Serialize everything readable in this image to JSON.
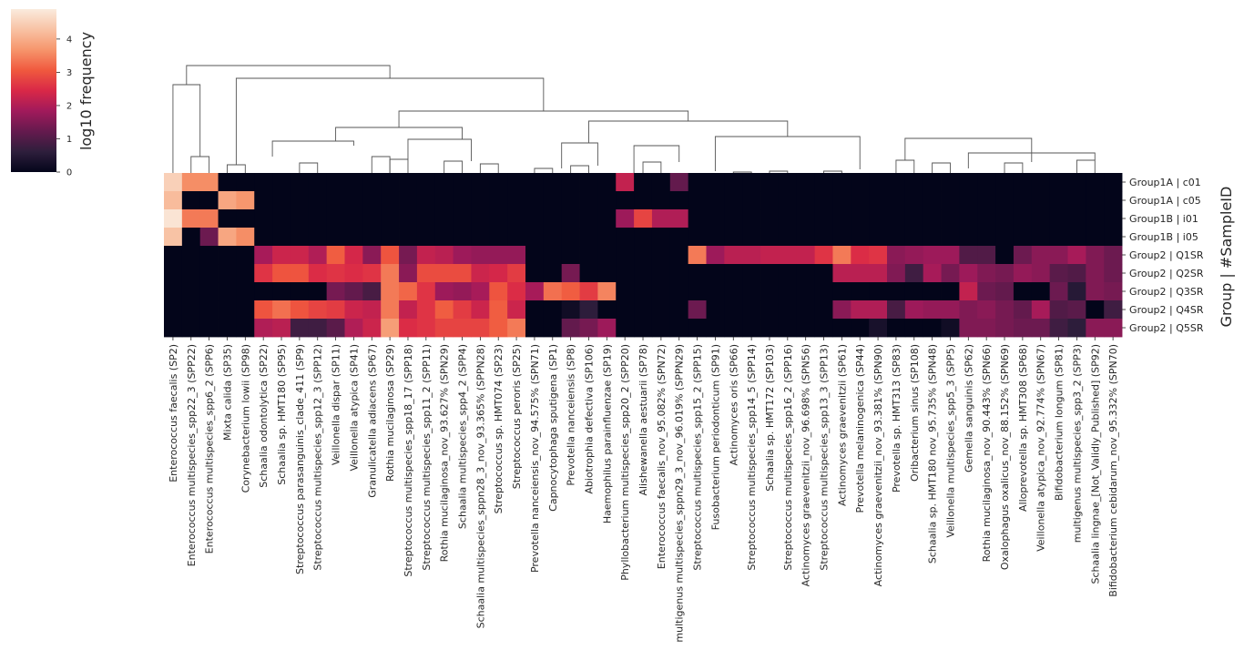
{
  "chart_data": {
    "type": "heatmap",
    "colorbar": {
      "label": "log10 frequency",
      "ticks": [
        0,
        1,
        2,
        3,
        4
      ],
      "range": [
        0,
        4.9
      ],
      "colormap": "rocket",
      "stops": [
        "#03051a",
        "#2e1e3c",
        "#651a4e",
        "#a11a5b",
        "#d92847",
        "#f0593e",
        "#f6956c",
        "#f8c2a4",
        "#faebdd"
      ]
    },
    "ylabel": "Group | #SampleID",
    "rows": [
      "Group1A | c01",
      "Group1A | c05",
      "Group1B | i01",
      "Group1B | i05",
      "Group2 | Q1SR",
      "Group2 | Q2SR",
      "Group2 | Q3SR",
      "Group2 | Q4SR",
      "Group2 | Q5SR"
    ],
    "columns": [
      "Enterococcus faecalis (SP2)",
      "Enterococcus multispecies_spp22_3 (SPP22)",
      "Enterococcus multispecies_spp6_2 (SPP6)",
      "Mixta calida (SP35)",
      "Corynebacterium lowii (SP98)",
      "Schaalia odontolytica (SP22)",
      "Schaalia sp. HMT180 (SP95)",
      "Streptococcus parasanguinis_clade_411 (SP9)",
      "Streptococcus multispecies_spp12_3 (SPP12)",
      "Veillonella dispar (SP11)",
      "Veillonella atypica (SP41)",
      "Granulicatella adiacens (SP67)",
      "Rothia mucilaginosa (SP29)",
      "Streptococcus multispecies_spp18_17 (SPP18)",
      "Streptococcus multispecies_spp11_2 (SPP11)",
      "Rothia mucilaginosa_nov_93.627% (SPN29)",
      "Schaalia multispecies_spp4_2 (SPP4)",
      "Schaalia multispecies_sppn28_3_nov_93.365% (SPPN28)",
      "Streptococcus sp. HMT074 (SP23)",
      "Streptococcus peroris (SP25)",
      "Prevotella nanceiensis_nov_94.575% (SPN71)",
      "Capnocytophaga sputigena (SP1)",
      "Prevotella nanceiensis (SP8)",
      "Abiotrophia defectiva (SP106)",
      "Haemophilus parainfluenzae (SP19)",
      "Phyllobacterium multispecies_spp20_2 (SPP20)",
      "Alishewanella aestuarii (SP78)",
      "Enterococcus faecalis_nov_95.082% (SPN72)",
      "multigenus multispecies_sppn29_3_nov_96.019% (SPPN29)",
      "Streptococcus multispecies_spp15_2 (SPP15)",
      "Fusobacterium periodonticum (SP91)",
      "Actinomyces oris (SP66)",
      "Streptococcus multispecies_spp14_5 (SPP14)",
      "Schaalia sp. HMT172 (SP103)",
      "Streptococcus multispecies_spp16_2 (SPP16)",
      "Actinomyces graevenitzii_nov_96.698% (SPN56)",
      "Streptococcus multispecies_spp13_3 (SPP13)",
      "Actinomyces graevenitzii (SP61)",
      "Prevotella melaninogenica (SP44)",
      "Actinomyces graevenitzii_nov_93.381% (SPN90)",
      "Prevotella sp. HMT313 (SP83)",
      "Oribacterium sinus (SP108)",
      "Schaalia sp. HMT180 nov_95.735% (SPN48)",
      "Veillonella multispecies_spp5_3 (SPP5)",
      "Gemella sanguinis (SP62)",
      "Rothia mucilaginosa_nov_90.443% (SPN66)",
      "Oxalophagus oxalicus_nov_88.152% (SPN69)",
      "Alloprevotella sp. HMT308 (SP68)",
      "Veillonella atypica_nov_92.774% (SPN67)",
      "Bifidobacterium longum (SP81)",
      "multigenus multispecies_spp3_2 (SPP3)",
      "Schaalia lingnae_[Not_Validly_Published] (SP92)",
      "Bifidobacterium cebidarum_nov_95.332% (SPN70)"
    ],
    "values": [
      [
        4.5,
        3.6,
        3.6,
        0,
        0,
        0,
        0,
        0,
        0,
        0,
        0,
        0,
        0,
        0,
        0,
        0,
        0,
        0,
        0,
        0,
        0,
        0,
        0,
        0,
        0,
        2.2,
        0,
        0,
        1.2,
        0,
        0,
        0,
        0,
        0,
        0,
        0,
        0,
        0,
        0,
        0,
        0,
        0,
        0,
        0,
        0,
        0,
        0,
        0,
        0,
        0,
        0,
        0,
        0
      ],
      [
        4.2,
        0,
        0,
        3.9,
        3.7,
        0,
        0,
        0,
        0,
        0,
        0,
        0,
        0,
        0,
        0,
        0,
        0,
        0,
        0,
        0,
        0,
        0,
        0,
        0,
        0,
        0,
        0,
        0,
        0,
        0,
        0,
        0,
        0,
        0,
        0,
        0,
        0,
        0,
        0,
        0,
        0,
        0,
        0,
        0,
        0,
        0,
        0,
        0,
        0,
        0,
        0,
        0,
        0
      ],
      [
        4.8,
        3.4,
        3.4,
        0,
        0,
        0,
        0,
        0,
        0,
        0,
        0,
        0,
        0,
        0,
        0,
        0,
        0,
        0,
        0,
        0,
        0,
        0,
        0,
        0,
        0,
        1.8,
        2.8,
        2.0,
        2.0,
        0,
        0,
        0,
        0,
        0,
        0,
        0,
        0,
        0,
        0,
        0,
        0,
        0,
        0,
        0,
        0,
        0,
        0,
        0,
        0,
        0,
        0,
        0,
        0
      ],
      [
        4.3,
        0,
        1.3,
        3.9,
        3.6,
        0,
        0,
        0,
        0,
        0,
        0,
        0,
        0,
        0,
        0,
        0,
        0,
        0,
        0,
        0,
        0,
        0,
        0,
        0,
        0,
        0,
        0,
        0,
        0,
        0,
        0,
        0,
        0,
        0,
        0,
        0,
        0,
        0,
        0,
        0,
        0,
        0,
        0,
        0,
        0,
        0,
        0,
        0,
        0,
        0,
        0,
        0,
        0
      ],
      [
        0,
        0,
        0,
        0,
        0,
        1.9,
        2.3,
        2.3,
        2.0,
        3.1,
        2.4,
        1.6,
        3.0,
        1.4,
        2.2,
        2.1,
        1.8,
        1.7,
        1.7,
        1.7,
        0,
        0,
        0,
        0,
        0,
        0,
        0,
        0,
        0,
        3.4,
        1.8,
        2.1,
        2.1,
        2.2,
        2.2,
        2.2,
        2.6,
        3.4,
        2.5,
        2.6,
        1.6,
        1.7,
        1.8,
        1.8,
        1.0,
        1.0,
        0,
        1.3,
        1.6,
        1.6,
        1.9,
        1.5,
        1.3
      ],
      [
        0,
        0,
        0,
        0,
        0,
        2.6,
        3.0,
        3.0,
        2.5,
        2.6,
        2.5,
        2.6,
        3.4,
        1.6,
        2.9,
        2.9,
        2.9,
        2.3,
        2.4,
        2.7,
        0,
        0,
        1.4,
        0,
        0,
        0,
        0,
        0,
        0,
        0,
        0,
        0,
        0,
        0,
        0,
        0,
        0,
        2.1,
        2.1,
        2.1,
        1.5,
        0.8,
        1.9,
        1.4,
        1.8,
        1.5,
        1.4,
        1.7,
        1.6,
        1.1,
        1.0,
        1.5,
        1.3
      ],
      [
        0,
        0,
        0,
        0,
        0,
        0,
        0,
        0,
        0,
        1.4,
        1.2,
        0.9,
        3.4,
        3.2,
        2.6,
        1.8,
        1.7,
        1.9,
        3.0,
        2.5,
        1.9,
        3.3,
        3.1,
        2.7,
        3.5,
        0,
        0,
        0,
        0,
        0,
        0,
        0,
        0,
        0,
        0,
        0,
        0,
        0,
        0,
        0,
        0,
        0,
        0,
        0,
        2.2,
        1.3,
        1.2,
        0,
        0,
        1.3,
        0.5,
        1.5,
        1.4
      ],
      [
        0,
        0,
        0,
        0,
        0,
        3.0,
        3.3,
        3.0,
        2.8,
        2.7,
        2.3,
        2.2,
        3.4,
        2.2,
        2.6,
        3.1,
        2.7,
        2.3,
        3.1,
        2.3,
        0,
        0,
        0.2,
        0.6,
        0,
        0,
        0,
        0,
        0,
        1.3,
        0,
        0,
        0,
        0,
        0,
        0,
        0,
        1.6,
        2.0,
        2.0,
        0.9,
        1.8,
        1.7,
        1.7,
        1.5,
        1.6,
        1.4,
        1.2,
        1.9,
        1.0,
        1.1,
        0,
        0.8
      ],
      [
        0,
        0,
        0,
        0,
        0,
        2.0,
        2.1,
        0.8,
        0.8,
        1.1,
        2.0,
        2.3,
        3.8,
        2.5,
        2.6,
        2.8,
        2.8,
        2.8,
        3.1,
        3.4,
        0,
        0,
        1.2,
        1.4,
        1.8,
        0,
        0,
        0,
        0,
        0,
        0,
        0,
        0,
        0,
        0,
        0,
        0,
        0,
        0,
        0.3,
        0,
        0,
        0,
        0.2,
        1.5,
        1.5,
        1.4,
        1.3,
        1.3,
        0.8,
        0.6,
        1.6,
        1.6
      ]
    ]
  }
}
